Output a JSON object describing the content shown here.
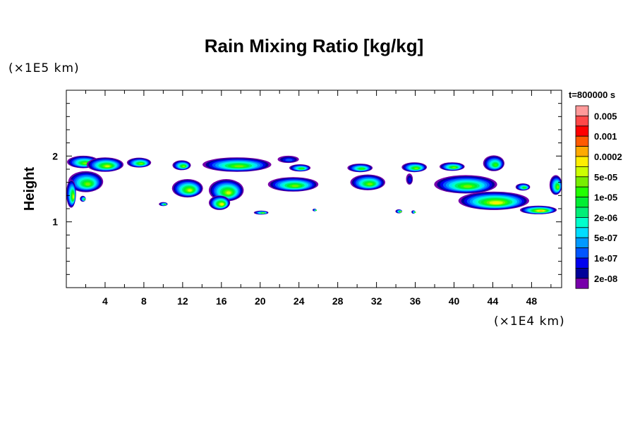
{
  "chart_data": {
    "type": "heatmap",
    "title": "Rain Mixing Ratio [kg/kg]",
    "xlabel": "",
    "x_unit": "(×1E4 km)",
    "ylabel": "Height",
    "y_unit": "(×1E5 km)",
    "time_label": "t=800000 s",
    "xlim": [
      0,
      51.1
    ],
    "ylim": [
      0,
      3
    ],
    "x_major_ticks": [
      4,
      8,
      12,
      16,
      20,
      24,
      28,
      32,
      36,
      40,
      44,
      48
    ],
    "x_tick_labels": [
      "4",
      "8",
      "12",
      "16",
      "20",
      "24",
      "28",
      "32",
      "36",
      "40",
      "44",
      "48"
    ],
    "x_minor_step": 2,
    "y_major_ticks": [
      1,
      2
    ],
    "y_tick_labels": [
      "1",
      "2"
    ],
    "y_minor_step": 0.2,
    "grid": false,
    "colorbar": {
      "colors_top_to_bottom": [
        "#ff9a9a",
        "#ff4848",
        "#ff0000",
        "#ff5a00",
        "#ffaa00",
        "#ffee00",
        "#ccff00",
        "#77ee00",
        "#22ff00",
        "#00ee33",
        "#00ee77",
        "#00ffcc",
        "#00ddff",
        "#0099ff",
        "#0055ff",
        "#0000ee",
        "#000099",
        "#7700aa"
      ],
      "labels": [
        "0.005",
        "0.001",
        "0.0002",
        "5e-05",
        "1e-05",
        "2e-06",
        "5e-07",
        "1e-07",
        "2e-08"
      ]
    },
    "rain_cells_note_fields": [
      "x",
      "y",
      "width",
      "height",
      "peak_level"
    ],
    "rain_cells": [
      [
        1.75,
        1.91,
        3.35,
        0.19,
        10
      ],
      [
        4.0,
        1.87,
        3.8,
        0.22,
        11
      ],
      [
        7.5,
        1.9,
        2.5,
        0.15,
        10
      ],
      [
        11.9,
        1.86,
        1.9,
        0.15,
        10
      ],
      [
        17.6,
        1.87,
        7.1,
        0.22,
        10
      ],
      [
        22.9,
        1.95,
        2.2,
        0.11,
        3
      ],
      [
        24.1,
        1.82,
        2.2,
        0.11,
        9
      ],
      [
        30.3,
        1.82,
        2.6,
        0.13,
        9
      ],
      [
        35.9,
        1.83,
        2.6,
        0.15,
        10
      ],
      [
        39.8,
        1.84,
        2.6,
        0.13,
        10
      ],
      [
        44.1,
        1.89,
        2.2,
        0.24,
        9
      ],
      [
        2.0,
        1.61,
        3.6,
        0.32,
        10
      ],
      [
        0.5,
        1.43,
        1.0,
        0.43,
        11
      ],
      [
        12.5,
        1.51,
        3.2,
        0.28,
        11
      ],
      [
        16.5,
        1.48,
        3.6,
        0.34,
        11
      ],
      [
        15.8,
        1.29,
        2.2,
        0.22,
        12
      ],
      [
        23.4,
        1.57,
        5.2,
        0.22,
        10
      ],
      [
        31.1,
        1.6,
        3.6,
        0.24,
        10
      ],
      [
        35.4,
        1.65,
        0.7,
        0.17,
        2
      ],
      [
        41.2,
        1.57,
        6.5,
        0.28,
        10
      ],
      [
        44.1,
        1.32,
        7.3,
        0.28,
        12
      ],
      [
        47.1,
        1.53,
        1.5,
        0.11,
        9
      ],
      [
        50.5,
        1.56,
        1.3,
        0.3,
        10
      ],
      [
        48.7,
        1.18,
        3.8,
        0.13,
        13
      ],
      [
        10.0,
        1.27,
        0.9,
        0.06,
        9
      ],
      [
        20.1,
        1.14,
        1.5,
        0.06,
        10
      ],
      [
        25.6,
        1.18,
        0.4,
        0.04,
        9
      ],
      [
        34.3,
        1.16,
        0.7,
        0.06,
        11
      ],
      [
        35.8,
        1.15,
        0.4,
        0.05,
        10
      ],
      [
        1.7,
        1.35,
        0.6,
        0.09,
        9
      ]
    ]
  }
}
